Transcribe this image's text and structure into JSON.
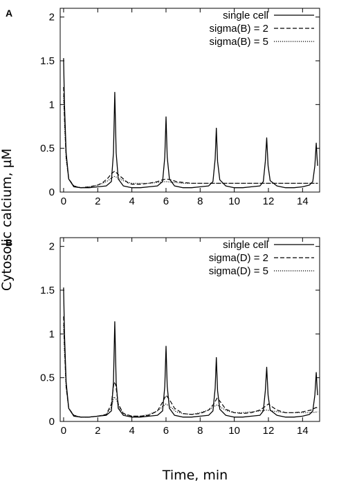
{
  "ylabel": "Cytosolic calcium, µM",
  "xlabel": "Time, min",
  "chart_data": [
    {
      "type": "line",
      "panel": "A",
      "xlim": [
        -0.2,
        15
      ],
      "ylim": [
        0,
        2.1
      ],
      "xticks": [
        "0",
        "2",
        "4",
        "6",
        "8",
        "10",
        "12",
        "14"
      ],
      "yticks": [
        "0",
        "0.5",
        "1",
        "1.5",
        "2"
      ],
      "legend_position": "top-right",
      "grid": false,
      "series": [
        {
          "name": "single cell",
          "style": "solid",
          "x": [
            0,
            0.05,
            0.15,
            0.3,
            0.6,
            1.0,
            1.5,
            2.0,
            2.5,
            2.8,
            2.92,
            3.0,
            3.08,
            3.2,
            3.5,
            4.0,
            4.5,
            5.0,
            5.5,
            5.8,
            5.93,
            6.0,
            6.07,
            6.2,
            6.5,
            7.0,
            7.5,
            8.0,
            8.5,
            8.75,
            8.88,
            8.95,
            9.02,
            9.15,
            9.5,
            10.0,
            10.5,
            11.0,
            11.5,
            11.7,
            11.82,
            11.9,
            11.98,
            12.1,
            12.5,
            13.0,
            13.5,
            14.0,
            14.4,
            14.6,
            14.72,
            14.8,
            14.88
          ],
          "y": [
            1.53,
            1.0,
            0.45,
            0.15,
            0.06,
            0.05,
            0.05,
            0.06,
            0.07,
            0.12,
            0.45,
            1.14,
            0.45,
            0.15,
            0.07,
            0.05,
            0.05,
            0.06,
            0.07,
            0.12,
            0.4,
            0.86,
            0.4,
            0.15,
            0.07,
            0.05,
            0.05,
            0.06,
            0.07,
            0.12,
            0.38,
            0.73,
            0.35,
            0.14,
            0.07,
            0.05,
            0.05,
            0.06,
            0.07,
            0.12,
            0.35,
            0.62,
            0.3,
            0.13,
            0.07,
            0.05,
            0.05,
            0.06,
            0.08,
            0.12,
            0.3,
            0.56,
            0.3
          ]
        },
        {
          "name": "sigma(B) = 2",
          "style": "dashed",
          "x": [
            0,
            0.05,
            0.15,
            0.3,
            0.6,
            1.0,
            1.5,
            2.0,
            2.3,
            2.6,
            2.8,
            3.0,
            3.2,
            3.5,
            3.8,
            4.0,
            4.5,
            5.0,
            5.5,
            5.8,
            6.0,
            6.3,
            6.6,
            7.0,
            7.5,
            8.0,
            9.0,
            10.0,
            11.0,
            12.0,
            13.0,
            14.0,
            14.9
          ],
          "y": [
            1.2,
            0.85,
            0.4,
            0.15,
            0.07,
            0.05,
            0.06,
            0.08,
            0.11,
            0.16,
            0.21,
            0.24,
            0.2,
            0.15,
            0.1,
            0.09,
            0.09,
            0.1,
            0.12,
            0.14,
            0.15,
            0.14,
            0.12,
            0.11,
            0.1,
            0.1,
            0.1,
            0.1,
            0.1,
            0.1,
            0.1,
            0.1,
            0.1
          ]
        },
        {
          "name": "sigma(B) = 5",
          "style": "dotted",
          "x": [
            0,
            0.05,
            0.15,
            0.3,
            0.6,
            1.0,
            1.5,
            2.0,
            2.3,
            2.6,
            2.8,
            3.0,
            3.2,
            3.5,
            3.8,
            4.0,
            4.5,
            5.0,
            5.5,
            6.0,
            6.5,
            7.0,
            8.0,
            9.0,
            10.0,
            11.0,
            12.0,
            13.0,
            14.0,
            14.9
          ],
          "y": [
            1.1,
            0.8,
            0.38,
            0.15,
            0.07,
            0.05,
            0.06,
            0.08,
            0.1,
            0.13,
            0.16,
            0.18,
            0.16,
            0.13,
            0.11,
            0.1,
            0.1,
            0.1,
            0.11,
            0.12,
            0.11,
            0.1,
            0.1,
            0.1,
            0.1,
            0.1,
            0.1,
            0.1,
            0.1,
            0.1
          ]
        }
      ]
    },
    {
      "type": "line",
      "panel": "B",
      "xlim": [
        -0.2,
        15
      ],
      "ylim": [
        0,
        2.1
      ],
      "xticks": [
        "0",
        "2",
        "4",
        "6",
        "8",
        "10",
        "12",
        "14"
      ],
      "yticks": [
        "0",
        "0.5",
        "1",
        "1.5",
        "2"
      ],
      "legend_position": "top-right",
      "grid": false,
      "series": [
        {
          "name": "single cell",
          "style": "solid",
          "x": [
            0,
            0.05,
            0.15,
            0.3,
            0.6,
            1.0,
            1.5,
            2.0,
            2.5,
            2.8,
            2.92,
            3.0,
            3.08,
            3.2,
            3.5,
            4.0,
            4.5,
            5.0,
            5.5,
            5.8,
            5.93,
            6.0,
            6.07,
            6.2,
            6.5,
            7.0,
            7.5,
            8.0,
            8.5,
            8.75,
            8.88,
            8.95,
            9.02,
            9.15,
            9.5,
            10.0,
            10.5,
            11.0,
            11.5,
            11.7,
            11.82,
            11.9,
            11.98,
            12.1,
            12.5,
            13.0,
            13.5,
            14.0,
            14.4,
            14.6,
            14.72,
            14.8,
            14.88
          ],
          "y": [
            1.53,
            1.0,
            0.45,
            0.15,
            0.06,
            0.05,
            0.05,
            0.06,
            0.07,
            0.12,
            0.45,
            1.14,
            0.45,
            0.15,
            0.07,
            0.05,
            0.05,
            0.06,
            0.07,
            0.12,
            0.4,
            0.86,
            0.4,
            0.15,
            0.07,
            0.05,
            0.05,
            0.06,
            0.07,
            0.12,
            0.38,
            0.73,
            0.35,
            0.14,
            0.07,
            0.05,
            0.05,
            0.06,
            0.07,
            0.12,
            0.35,
            0.62,
            0.3,
            0.13,
            0.07,
            0.05,
            0.05,
            0.06,
            0.08,
            0.12,
            0.3,
            0.56,
            0.3
          ]
        },
        {
          "name": "sigma(D) = 2",
          "style": "dashed",
          "x": [
            0,
            0.05,
            0.15,
            0.3,
            0.6,
            1.0,
            1.5,
            2.0,
            2.5,
            2.8,
            2.95,
            3.05,
            3.2,
            3.5,
            4.0,
            4.5,
            5.0,
            5.5,
            5.8,
            6.0,
            6.2,
            6.5,
            7.0,
            7.5,
            8.0,
            8.5,
            8.8,
            9.0,
            9.2,
            9.5,
            10.0,
            10.5,
            11.0,
            11.5,
            11.8,
            12.0,
            12.2,
            12.5,
            13.0,
            13.5,
            14.0,
            14.5,
            14.8,
            14.9
          ],
          "y": [
            1.2,
            0.85,
            0.4,
            0.15,
            0.07,
            0.05,
            0.05,
            0.06,
            0.08,
            0.2,
            0.45,
            0.42,
            0.2,
            0.09,
            0.06,
            0.06,
            0.07,
            0.12,
            0.22,
            0.3,
            0.25,
            0.15,
            0.09,
            0.08,
            0.09,
            0.13,
            0.2,
            0.27,
            0.22,
            0.14,
            0.1,
            0.09,
            0.1,
            0.13,
            0.17,
            0.2,
            0.17,
            0.13,
            0.1,
            0.1,
            0.11,
            0.13,
            0.16,
            0.15
          ]
        },
        {
          "name": "sigma(D) = 5",
          "style": "dotted",
          "x": [
            0,
            0.05,
            0.15,
            0.3,
            0.6,
            1.0,
            1.5,
            2.0,
            2.5,
            2.8,
            2.95,
            3.1,
            3.3,
            3.6,
            4.0,
            4.5,
            5.0,
            5.5,
            5.8,
            6.0,
            6.3,
            6.6,
            7.0,
            7.5,
            8.0,
            8.5,
            8.8,
            9.0,
            9.3,
            9.6,
            10.0,
            10.5,
            11.0,
            11.5,
            11.9,
            12.2,
            12.6,
            13.0,
            13.5,
            14.0,
            14.5,
            14.9
          ],
          "y": [
            1.1,
            0.8,
            0.38,
            0.15,
            0.07,
            0.05,
            0.05,
            0.06,
            0.08,
            0.16,
            0.28,
            0.25,
            0.14,
            0.08,
            0.06,
            0.06,
            0.08,
            0.12,
            0.17,
            0.2,
            0.16,
            0.11,
            0.09,
            0.08,
            0.1,
            0.13,
            0.17,
            0.19,
            0.15,
            0.12,
            0.1,
            0.1,
            0.11,
            0.12,
            0.13,
            0.12,
            0.11,
            0.1,
            0.1,
            0.1,
            0.1,
            0.11
          ]
        }
      ]
    }
  ]
}
